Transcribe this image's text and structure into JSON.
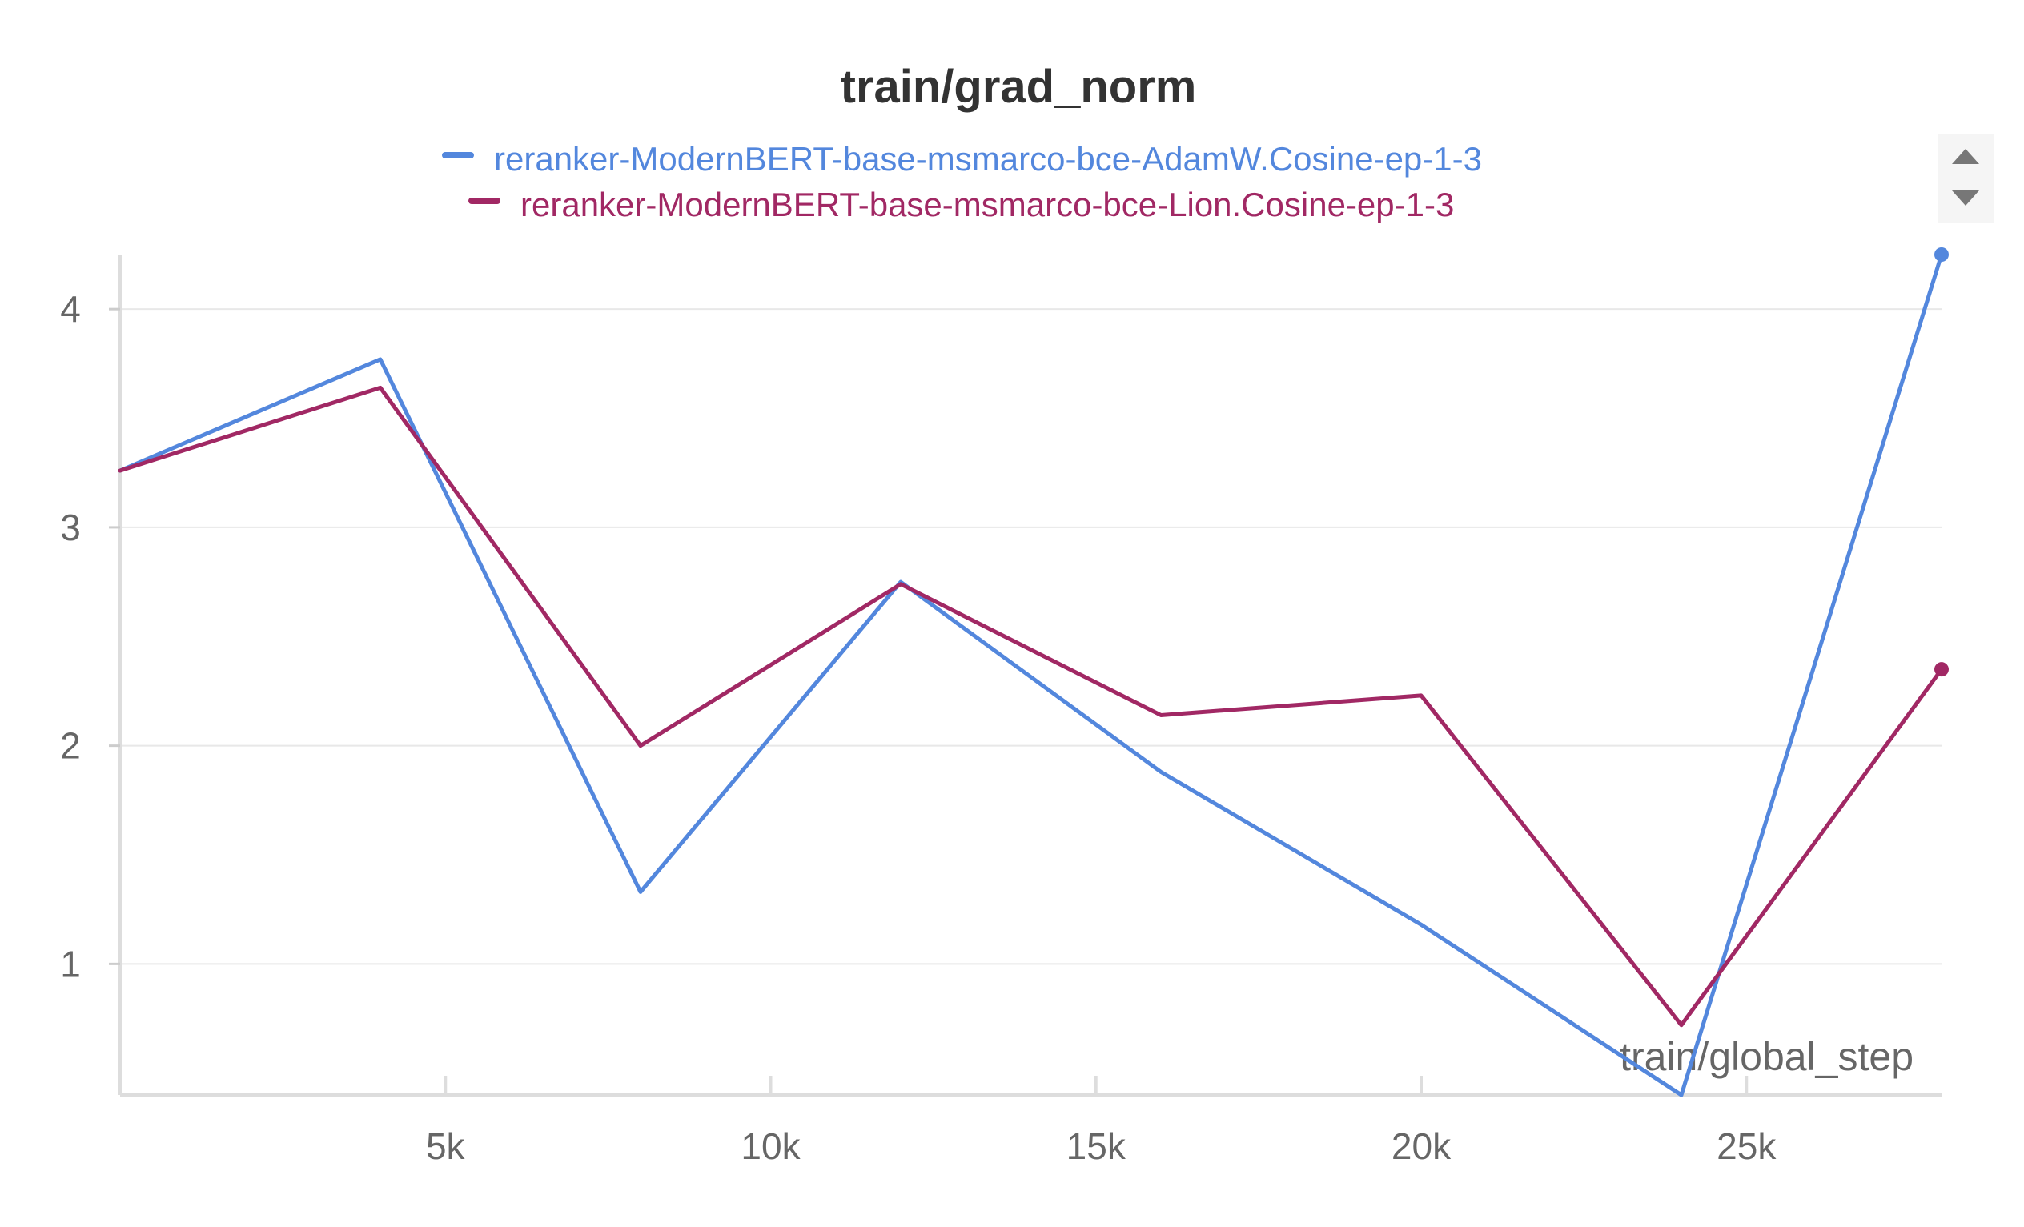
{
  "chart_data": {
    "type": "line",
    "title": "train/grad_norm",
    "xlabel": "train/global_step",
    "ylabel": "",
    "xlim": [
      0,
      28000
    ],
    "ylim": [
      0.4,
      4.25
    ],
    "x_ticks": [
      5000,
      10000,
      15000,
      20000,
      25000
    ],
    "x_tick_labels": [
      "5k",
      "10k",
      "15k",
      "20k",
      "25k"
    ],
    "y_ticks": [
      1,
      2,
      3,
      4
    ],
    "y_tick_labels": [
      "1",
      "2",
      "3",
      "4"
    ],
    "grid": "horizontal",
    "legend_position": "top-center",
    "series": [
      {
        "name": "reranker-ModernBERT-base-msmarco-bce-AdamW.Cosine-ep-1-3",
        "color": "#5387dd",
        "x": [
          0,
          4000,
          8000,
          12000,
          16000,
          20000,
          24000,
          28000
        ],
        "y": [
          3.26,
          3.77,
          1.33,
          2.75,
          1.88,
          1.18,
          0.4,
          4.25
        ]
      },
      {
        "name": "reranker-ModernBERT-base-msmarco-bce-Lion.Cosine-ep-1-3",
        "color": "#a12864",
        "x": [
          0,
          4000,
          8000,
          12000,
          16000,
          20000,
          24000,
          28000
        ],
        "y": [
          3.26,
          3.64,
          2.0,
          2.74,
          2.14,
          2.23,
          0.72,
          2.35
        ]
      }
    ]
  }
}
